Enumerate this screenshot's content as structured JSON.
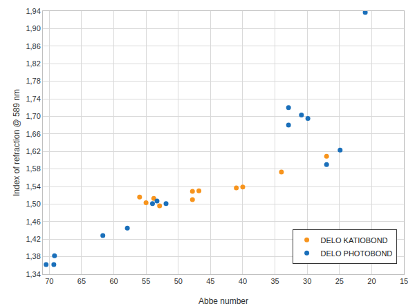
{
  "chart_data": {
    "type": "scatter",
    "x_label": "Abbe number",
    "y_label": "Index of refraction @ 589 nm",
    "xlim": [
      71,
      15
    ],
    "xticks": [
      70,
      65,
      60,
      55,
      50,
      45,
      40,
      35,
      30,
      25,
      20,
      15
    ],
    "ylim": [
      1.34,
      1.94
    ],
    "yticks": [
      {
        "value": 1.34,
        "label": "1,34"
      },
      {
        "value": 1.38,
        "label": "1,38"
      },
      {
        "value": 1.42,
        "label": "1,42"
      },
      {
        "value": 1.46,
        "label": "1,46"
      },
      {
        "value": 1.5,
        "label": "1,50"
      },
      {
        "value": 1.54,
        "label": "1,54"
      },
      {
        "value": 1.58,
        "label": "1,58"
      },
      {
        "value": 1.62,
        "label": "1,62"
      },
      {
        "value": 1.66,
        "label": "1,66"
      },
      {
        "value": 1.7,
        "label": "1,70"
      },
      {
        "value": 1.74,
        "label": "1,74"
      },
      {
        "value": 1.78,
        "label": "1,78"
      },
      {
        "value": 1.82,
        "label": "1,82"
      },
      {
        "value": 1.86,
        "label": "1,86"
      },
      {
        "value": 1.9,
        "label": "1,90"
      },
      {
        "value": 1.94,
        "label": "1,94"
      }
    ],
    "grid": true,
    "legend": "bottom right",
    "series": [
      {
        "name": "DELO KATIOBOND",
        "color": "#f7941d",
        "marker": "circle",
        "x": [
          56,
          55,
          53.8,
          52.9,
          47.8,
          47.8,
          46.8,
          41,
          40,
          34,
          27
        ],
        "values": [
          1.516,
          1.503,
          1.513,
          1.496,
          1.529,
          1.51,
          1.53,
          1.537,
          1.539,
          1.573,
          1.609
        ]
      },
      {
        "name": "DELO PHOTOBOND",
        "color": "#1a6fba",
        "marker": "circle",
        "x": [
          70.5,
          69.3,
          69.2,
          61.7,
          57.9,
          54,
          53.3,
          51.9,
          32.9,
          32.9,
          30.9,
          29.9,
          27,
          24.9,
          21
        ],
        "values": [
          1.362,
          1.362,
          1.382,
          1.428,
          1.445,
          1.501,
          1.507,
          1.501,
          1.72,
          1.68,
          1.703,
          1.695,
          1.59,
          1.623,
          1.937
        ]
      }
    ]
  }
}
